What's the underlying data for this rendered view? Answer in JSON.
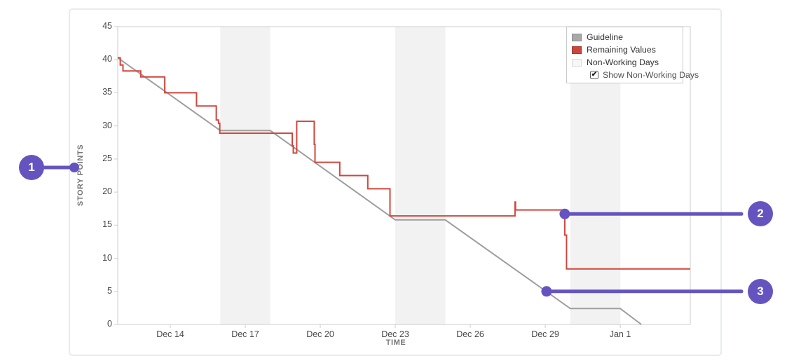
{
  "colors": {
    "accent_purple": "#6554c0",
    "plot_border": "#cccccc",
    "guideline": "#9e9e9e",
    "remaining": "#d0463c",
    "non_working_band": "#f2f2f2",
    "card_border": "#e8eaee"
  },
  "chart_data": {
    "type": "line",
    "title": "",
    "xlabel": "TIME",
    "ylabel": "STORY POINTS",
    "ylim": [
      0,
      45
    ],
    "y_ticks": [
      0,
      5,
      10,
      15,
      20,
      25,
      30,
      35,
      40,
      45
    ],
    "x_domain_days": [
      11.9,
      34.8
    ],
    "x_ticks": [
      {
        "label": "Dec 14",
        "day": 14
      },
      {
        "label": "Dec 17",
        "day": 17
      },
      {
        "label": "Dec 20",
        "day": 20
      },
      {
        "label": "Dec 23",
        "day": 23
      },
      {
        "label": "Dec 26",
        "day": 26
      },
      {
        "label": "Dec 29",
        "day": 29
      },
      {
        "label": "Jan 1",
        "day": 32
      }
    ],
    "non_working_day_bands": [
      [
        16,
        18
      ],
      [
        23,
        25
      ],
      [
        30,
        32
      ]
    ],
    "grid": "off",
    "legend_position": "top-right",
    "series": [
      {
        "name": "Guideline",
        "color": "#9e9e9e",
        "points": [
          [
            11.9,
            40.3
          ],
          [
            16,
            29.3
          ],
          [
            18,
            29.3
          ],
          [
            23,
            15.8
          ],
          [
            25,
            15.8
          ],
          [
            30,
            2.4
          ],
          [
            32,
            2.4
          ],
          [
            32.84,
            0
          ]
        ]
      },
      {
        "name": "Remaining Values",
        "color": "#d0463c",
        "points": [
          [
            11.9,
            40.3
          ],
          [
            12.0,
            40.3
          ],
          [
            12.0,
            39.2
          ],
          [
            12.11,
            39.2
          ],
          [
            12.11,
            38.3
          ],
          [
            12.82,
            38.3
          ],
          [
            12.82,
            37.4
          ],
          [
            13.78,
            37.4
          ],
          [
            13.78,
            35.0
          ],
          [
            15.05,
            35.0
          ],
          [
            15.05,
            33.0
          ],
          [
            15.84,
            33.0
          ],
          [
            15.84,
            30.9
          ],
          [
            15.93,
            30.9
          ],
          [
            15.93,
            30.4
          ],
          [
            15.98,
            30.4
          ],
          [
            15.98,
            28.9
          ],
          [
            18.88,
            28.9
          ],
          [
            18.88,
            27.0
          ],
          [
            18.92,
            27.0
          ],
          [
            18.92,
            25.9
          ],
          [
            19.06,
            25.9
          ],
          [
            19.06,
            30.7
          ],
          [
            19.76,
            30.7
          ],
          [
            19.76,
            27.2
          ],
          [
            19.79,
            27.2
          ],
          [
            19.79,
            24.5
          ],
          [
            20.78,
            24.5
          ],
          [
            20.78,
            22.5
          ],
          [
            21.9,
            22.5
          ],
          [
            21.9,
            20.5
          ],
          [
            22.79,
            20.5
          ],
          [
            22.79,
            16.4
          ],
          [
            27.79,
            16.4
          ],
          [
            27.79,
            18.5
          ],
          [
            27.81,
            18.5
          ],
          [
            27.81,
            17.3
          ],
          [
            29.78,
            17.3
          ],
          [
            29.78,
            13.5
          ],
          [
            29.85,
            13.5
          ],
          [
            29.85,
            8.4
          ],
          [
            34.8,
            8.4
          ]
        ]
      }
    ],
    "legend": {
      "items": [
        {
          "label": "Guideline",
          "swatch_color": "#a9a9a9",
          "swatch_border": "#8f8f8f"
        },
        {
          "label": "Remaining Values",
          "swatch_color": "#cb463c",
          "swatch_border": "#a83a31"
        },
        {
          "label": "Non-Working Days",
          "swatch_color": "#f7f7f7",
          "swatch_border": "#dcdcdc"
        }
      ],
      "checkbox": {
        "label": "Show Non-Working Days",
        "checked": true
      }
    }
  },
  "callouts": [
    {
      "label": "1",
      "points_to": "story-points-axis-label"
    },
    {
      "label": "2",
      "points_to": "remaining-values-line",
      "anchor_day": 29.78,
      "anchor_value": 16.7
    },
    {
      "label": "3",
      "points_to": "guideline",
      "anchor_day": 29.05,
      "anchor_value": 5
    }
  ]
}
